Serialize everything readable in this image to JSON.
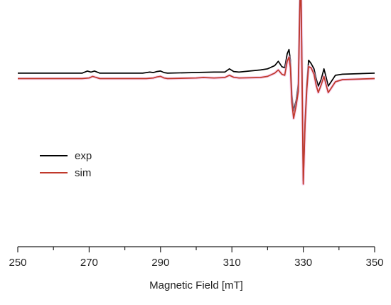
{
  "chart_data": {
    "type": "line",
    "title": "",
    "xlabel": "Magnetic Field [mT]",
    "ylabel": "",
    "xlim": [
      250,
      350
    ],
    "ylim": [
      -1.0,
      1.0
    ],
    "xticks": [
      "250",
      "270",
      "290",
      "310",
      "330",
      "350"
    ],
    "grid": false,
    "y_axis_shown": false,
    "legend": {
      "position": "middle-left",
      "entries": [
        "exp",
        "sim"
      ]
    },
    "series": [
      {
        "name": "exp",
        "color": "#000000",
        "offset": 0.4,
        "x": [
          250,
          268,
          269.5,
          270.5,
          271.5,
          273,
          285,
          287,
          288,
          289,
          290,
          291,
          292,
          305,
          308,
          309.3,
          310.5,
          312,
          318,
          320,
          322,
          323,
          324,
          324.8,
          325.5,
          326,
          326.4,
          326.8,
          327.3,
          328,
          328.6,
          329,
          329.3,
          329.6,
          330,
          330.5,
          331,
          331.5,
          332.2,
          333,
          333.6,
          334.2,
          335,
          335.8,
          336.5,
          337,
          337.8,
          339,
          341,
          350
        ],
        "y": [
          0,
          0,
          0.02,
          0.01,
          0.02,
          0,
          0,
          0.01,
          0.005,
          0.015,
          0.02,
          0.005,
          0,
          0.01,
          0.01,
          0.04,
          0.015,
          0.01,
          0.03,
          0.04,
          0.07,
          0.11,
          0.06,
          0.05,
          0.18,
          0.22,
          0.12,
          -0.2,
          -0.35,
          -0.25,
          -0.1,
          0.65,
          0.99,
          0.2,
          -1.0,
          -0.45,
          -0.1,
          0.12,
          0.09,
          0.04,
          -0.05,
          -0.12,
          -0.06,
          0.04,
          -0.05,
          -0.12,
          -0.08,
          -0.02,
          -0.01,
          0
        ]
      },
      {
        "name": "sim",
        "color": "#c0392b",
        "offset": 0.35,
        "x": [
          250,
          268,
          270,
          271,
          272,
          273,
          286,
          288,
          289,
          290,
          291,
          292,
          300,
          302,
          305,
          308,
          309.3,
          310.5,
          312,
          318,
          320,
          322,
          323,
          324,
          324.8,
          325.5,
          326,
          326.4,
          326.8,
          327.3,
          328,
          328.6,
          329,
          329.3,
          329.6,
          330,
          330.5,
          331,
          331.5,
          332.2,
          333,
          333.6,
          334.2,
          335,
          335.8,
          336.5,
          337,
          337.8,
          339,
          341,
          350
        ],
        "y": [
          0,
          0,
          0.005,
          0.02,
          0.01,
          0,
          0,
          0.005,
          0.015,
          0.02,
          0.005,
          0,
          0.005,
          0.01,
          0.005,
          0.01,
          0.03,
          0.012,
          0.005,
          0.01,
          0.02,
          0.05,
          0.08,
          0.04,
          0.03,
          0.16,
          0.2,
          0.1,
          -0.22,
          -0.37,
          -0.25,
          -0.12,
          0.6,
          0.97,
          0.15,
          -0.98,
          -0.43,
          -0.1,
          0.11,
          0.1,
          0.04,
          -0.06,
          -0.13,
          -0.06,
          0.02,
          -0.07,
          -0.13,
          -0.09,
          -0.03,
          -0.01,
          0
        ]
      }
    ]
  }
}
